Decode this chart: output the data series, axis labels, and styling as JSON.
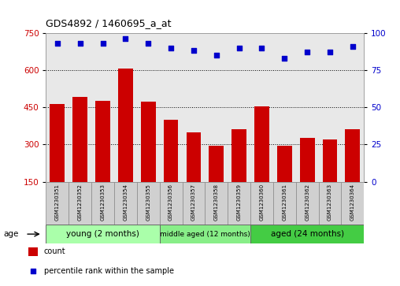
{
  "title": "GDS4892 / 1460695_a_at",
  "samples": [
    "GSM1230351",
    "GSM1230352",
    "GSM1230353",
    "GSM1230354",
    "GSM1230355",
    "GSM1230356",
    "GSM1230357",
    "GSM1230358",
    "GSM1230359",
    "GSM1230360",
    "GSM1230361",
    "GSM1230362",
    "GSM1230363",
    "GSM1230364"
  ],
  "counts": [
    463,
    492,
    475,
    605,
    472,
    400,
    348,
    295,
    360,
    453,
    295,
    328,
    320,
    360
  ],
  "percentiles": [
    93,
    93,
    93,
    96,
    93,
    90,
    88,
    85,
    90,
    90,
    83,
    87,
    87,
    91
  ],
  "groups": [
    {
      "label": "young (2 months)",
      "start": 0,
      "end": 5,
      "color": "#aaffaa"
    },
    {
      "label": "middle aged (12 months)",
      "start": 5,
      "end": 9,
      "color": "#88ee88"
    },
    {
      "label": "aged (24 months)",
      "start": 9,
      "end": 14,
      "color": "#44cc44"
    }
  ],
  "ylim_left": [
    150,
    750
  ],
  "yticks_left": [
    150,
    300,
    450,
    600,
    750
  ],
  "ylim_right": [
    0,
    100
  ],
  "yticks_right": [
    0,
    25,
    50,
    75,
    100
  ],
  "bar_color": "#cc0000",
  "dot_color": "#0000cc",
  "plot_bg_color": "#e8e8e8",
  "ylabel_left_color": "#cc0000",
  "ylabel_right_color": "#0000cc",
  "legend_count_label": "count",
  "legend_percentile_label": "percentile rank within the sample",
  "age_label": "age"
}
